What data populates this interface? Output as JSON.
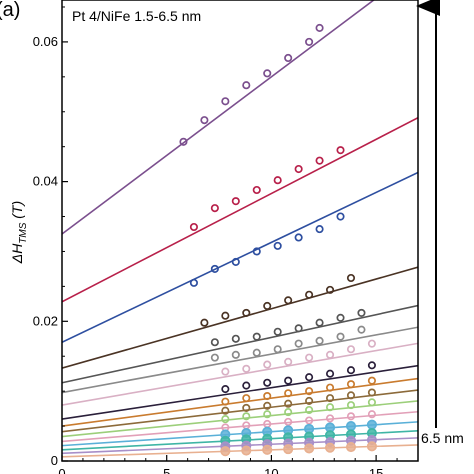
{
  "chart_data": {
    "type": "scatter",
    "panel_label": "(a)",
    "title": "Pt 4/NiFe 1.5-6.5 nm",
    "ylabel": {
      "base": "ΔH",
      "sub": "TMS",
      "unit": " (T)"
    },
    "arrow_label": "6.5 nm",
    "xlim": [
      0,
      17
    ],
    "ylim": [
      0,
      0.066
    ],
    "xticks": [
      0,
      5,
      10,
      15
    ],
    "xtick_labels": [
      "0",
      "5",
      "10",
      "15"
    ],
    "yticks": [
      0,
      0.02,
      0.04,
      0.06
    ],
    "ytick_labels": [
      "0",
      "0.02",
      "0.04",
      "0.06"
    ],
    "series": [
      {
        "color": "#7b4f8e",
        "intercept": 0.0325,
        "slope": 0.00225,
        "points": [
          [
            5.8,
            0.0457
          ],
          [
            6.8,
            0.0488
          ],
          [
            7.8,
            0.0515
          ],
          [
            8.8,
            0.0538
          ],
          [
            9.8,
            0.0555
          ],
          [
            10.8,
            0.0577
          ],
          [
            11.8,
            0.06
          ],
          [
            12.3,
            0.062
          ]
        ]
      },
      {
        "color": "#b8204a",
        "intercept": 0.0228,
        "slope": 0.00155,
        "points": [
          [
            6.3,
            0.0335
          ],
          [
            7.3,
            0.0362
          ],
          [
            8.3,
            0.0372
          ],
          [
            9.3,
            0.0388
          ],
          [
            10.3,
            0.0402
          ],
          [
            11.3,
            0.0418
          ],
          [
            12.3,
            0.043
          ],
          [
            13.3,
            0.0445
          ]
        ]
      },
      {
        "color": "#2e4fa0",
        "intercept": 0.017,
        "slope": 0.00143,
        "points": [
          [
            6.3,
            0.0255
          ],
          [
            7.3,
            0.0275
          ],
          [
            8.3,
            0.0285
          ],
          [
            9.3,
            0.03
          ],
          [
            10.3,
            0.0308
          ],
          [
            11.3,
            0.032
          ],
          [
            12.3,
            0.0332
          ],
          [
            13.3,
            0.035
          ]
        ]
      },
      {
        "color": "#4a3324",
        "intercept": 0.0133,
        "slope": 0.00085,
        "points": [
          [
            6.8,
            0.0198
          ],
          [
            7.8,
            0.0208
          ],
          [
            8.8,
            0.0212
          ],
          [
            9.8,
            0.0222
          ],
          [
            10.8,
            0.023
          ],
          [
            11.8,
            0.0238
          ],
          [
            12.8,
            0.0245
          ],
          [
            13.8,
            0.0262
          ]
        ]
      },
      {
        "color": "#555555",
        "intercept": 0.0112,
        "slope": 0.00065,
        "points": [
          [
            7.3,
            0.017
          ],
          [
            8.3,
            0.0175
          ],
          [
            9.3,
            0.0178
          ],
          [
            10.3,
            0.0185
          ],
          [
            11.3,
            0.019
          ],
          [
            12.3,
            0.0198
          ],
          [
            13.3,
            0.0205
          ],
          [
            14.3,
            0.0212
          ]
        ]
      },
      {
        "color": "#8a8a8a",
        "intercept": 0.0098,
        "slope": 0.00055,
        "points": [
          [
            7.3,
            0.0148
          ],
          [
            8.3,
            0.0152
          ],
          [
            9.3,
            0.0155
          ],
          [
            10.3,
            0.016
          ],
          [
            11.3,
            0.0168
          ],
          [
            12.3,
            0.0172
          ],
          [
            13.3,
            0.0178
          ],
          [
            14.3,
            0.0188
          ]
        ]
      },
      {
        "color": "#d9b0c4",
        "intercept": 0.008,
        "slope": 0.00052,
        "points": [
          [
            7.8,
            0.0128
          ],
          [
            8.8,
            0.0132
          ],
          [
            9.8,
            0.0138
          ],
          [
            10.8,
            0.0142
          ],
          [
            11.8,
            0.0148
          ],
          [
            12.8,
            0.0152
          ],
          [
            13.8,
            0.016
          ],
          [
            14.8,
            0.0168
          ]
        ]
      },
      {
        "color": "#2a1f3a",
        "intercept": 0.006,
        "slope": 0.00045,
        "points": [
          [
            7.8,
            0.0103
          ],
          [
            8.8,
            0.0108
          ],
          [
            9.8,
            0.0112
          ],
          [
            10.8,
            0.0115
          ],
          [
            11.8,
            0.012
          ],
          [
            12.8,
            0.0125
          ],
          [
            13.8,
            0.013
          ],
          [
            14.8,
            0.0137
          ]
        ]
      },
      {
        "color": "#c97b2e",
        "intercept": 0.005,
        "slope": 0.0004,
        "points": [
          [
            7.8,
            0.0085
          ],
          [
            8.8,
            0.009
          ],
          [
            9.8,
            0.0093
          ],
          [
            10.8,
            0.0097
          ],
          [
            11.8,
            0.01
          ],
          [
            12.8,
            0.0105
          ],
          [
            13.8,
            0.011
          ],
          [
            14.8,
            0.0115
          ]
        ]
      },
      {
        "color": "#8c6a3a",
        "intercept": 0.0042,
        "slope": 0.00035,
        "points": [
          [
            7.8,
            0.0072
          ],
          [
            8.8,
            0.0076
          ],
          [
            9.8,
            0.0079
          ],
          [
            10.8,
            0.0082
          ],
          [
            11.8,
            0.0086
          ],
          [
            12.8,
            0.009
          ],
          [
            13.8,
            0.0094
          ],
          [
            14.8,
            0.0098
          ]
        ]
      },
      {
        "color": "#9ccf7a",
        "intercept": 0.0035,
        "slope": 0.0003,
        "points": [
          [
            7.8,
            0.006
          ],
          [
            8.8,
            0.0064
          ],
          [
            9.8,
            0.0067
          ],
          [
            10.8,
            0.007
          ],
          [
            11.8,
            0.0073
          ],
          [
            12.8,
            0.0077
          ],
          [
            13.8,
            0.008
          ],
          [
            14.8,
            0.0084
          ]
        ]
      },
      {
        "color": "#e2a0b8",
        "intercept": 0.0028,
        "slope": 0.00025,
        "points": [
          [
            7.8,
            0.0048
          ],
          [
            8.8,
            0.0051
          ],
          [
            9.8,
            0.0053
          ],
          [
            10.8,
            0.0056
          ],
          [
            11.8,
            0.0058
          ],
          [
            12.8,
            0.0061
          ],
          [
            13.8,
            0.0064
          ],
          [
            14.8,
            0.0067
          ]
        ]
      },
      {
        "color": "#5ab0d8",
        "intercept": 0.0022,
        "slope": 0.0002,
        "points": [
          [
            7.8,
            0.0038
          ],
          [
            8.8,
            0.004
          ],
          [
            9.8,
            0.0042
          ],
          [
            10.8,
            0.0044
          ],
          [
            11.8,
            0.0046
          ],
          [
            12.8,
            0.0048
          ],
          [
            13.8,
            0.005
          ],
          [
            14.8,
            0.0052
          ]
        ]
      },
      {
        "color": "#3fb5a5",
        "intercept": 0.0016,
        "slope": 0.00016,
        "points": [
          [
            7.8,
            0.0029
          ],
          [
            8.8,
            0.0031
          ],
          [
            9.8,
            0.0032
          ],
          [
            10.8,
            0.0034
          ],
          [
            11.8,
            0.0035
          ],
          [
            12.8,
            0.0037
          ],
          [
            13.8,
            0.0038
          ],
          [
            14.8,
            0.004
          ]
        ]
      },
      {
        "color": "#a88fc8",
        "intercept": 0.0011,
        "slope": 0.00013,
        "points": [
          [
            7.8,
            0.0021
          ],
          [
            8.8,
            0.0022
          ],
          [
            9.8,
            0.0024
          ],
          [
            10.8,
            0.0025
          ],
          [
            11.8,
            0.0026
          ],
          [
            12.8,
            0.0027
          ],
          [
            13.8,
            0.0029
          ],
          [
            14.8,
            0.003
          ]
        ]
      },
      {
        "color": "#e8b090",
        "intercept": 0.0006,
        "slope": 0.0001,
        "points": [
          [
            7.8,
            0.0014
          ],
          [
            8.8,
            0.0015
          ],
          [
            9.8,
            0.0016
          ],
          [
            10.8,
            0.0017
          ],
          [
            11.8,
            0.0018
          ],
          [
            12.8,
            0.0019
          ],
          [
            13.8,
            0.002
          ],
          [
            14.8,
            0.0021
          ]
        ]
      }
    ]
  }
}
